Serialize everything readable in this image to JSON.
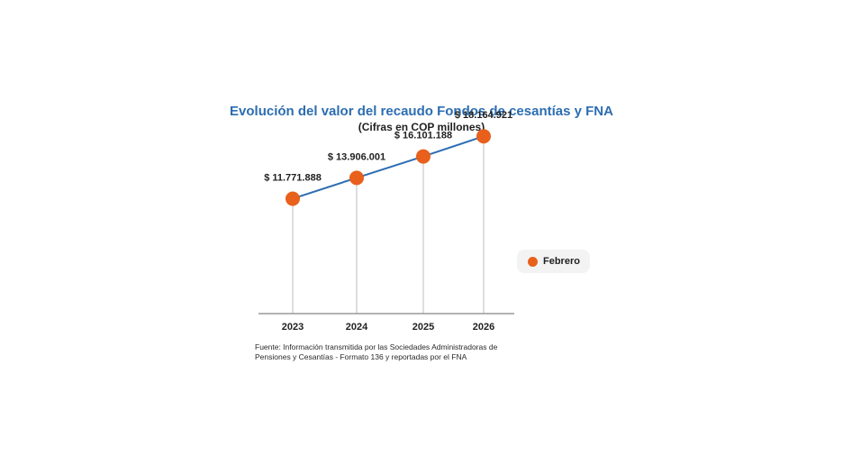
{
  "colors": {
    "title": "#2c6db1",
    "line": "#2c6db1",
    "marker": "#e8601c",
    "axis": "#9a9a9a",
    "stem": "#c8c8c8"
  },
  "chart_data": {
    "type": "line",
    "title": "Evolución del valor del recaudo Fondos de cesantías y FNA",
    "subtitle": "(Cifras en COP millones)",
    "categories": [
      "2023",
      "2024",
      "2025",
      "2026"
    ],
    "series": [
      {
        "name": "Febrero",
        "values": [
          11771888,
          13906001,
          16101188,
          18164921
        ],
        "labels": [
          "$ 11.771.888",
          "$ 13.906.001",
          "$ 16.101.188",
          "$ 18.164.921"
        ]
      }
    ],
    "ylim": [
      0,
      19200000
    ],
    "grid": false,
    "legend_position": "right",
    "source": "Fuente: Información transmitida por las Sociedades Administradoras de Pensiones y Cesantías - Formato 136 y reportadas por el FNA"
  }
}
